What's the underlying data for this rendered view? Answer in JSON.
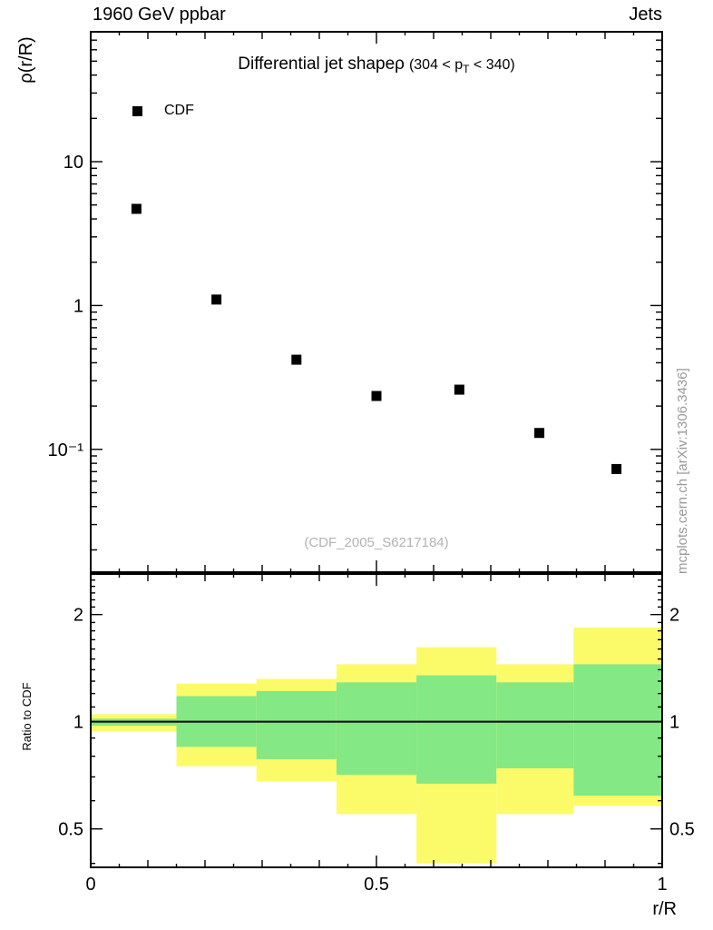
{
  "header": {
    "left": "1960 GeV ppbar",
    "right": "Jets"
  },
  "credit": "mcplots.cern.ch [arXiv:1306.3436]",
  "top_panel": {
    "y_axis_label": "ρ(r/R)",
    "title": {
      "main": "Differential jet shape",
      "symbol": "ρ",
      "range_pre": "(304 < p",
      "range_sub": "T",
      "range_post": " < 340)"
    },
    "legend": [
      {
        "label": "CDF",
        "marker": "filled-black-square"
      }
    ],
    "watermark": "(CDF_2005_S6217184)"
  },
  "bottom_panel": {
    "y_axis_label": "Ratio to CDF"
  },
  "x_axis": {
    "label": "r/R"
  },
  "colors": {
    "yellow_band": "#fbfb6a",
    "green_band": "#84e884",
    "marker": "#000000",
    "axis": "#000000",
    "watermark": "#b3b3b3",
    "credit": "#999999"
  },
  "chart_data": [
    {
      "type": "scatter",
      "panel": "top",
      "title": "Differential jet shape ρ (304 < pT < 340)",
      "xlabel": "r/R",
      "ylabel": "ρ(r/R)",
      "yscale": "log",
      "xlim": [
        0,
        1
      ],
      "ylim": [
        0.014,
        80
      ],
      "x_ticks": [
        {
          "v": 0,
          "label": "0"
        },
        {
          "v": 0.5,
          "label": "0.5"
        },
        {
          "v": 1,
          "label": "1"
        }
      ],
      "y_ticks": [
        {
          "v": 10,
          "label": "10"
        },
        {
          "v": 1,
          "label": "1"
        },
        {
          "v": 0.1,
          "label": "10⁻¹"
        }
      ],
      "series": [
        {
          "name": "CDF",
          "marker": "filled-square",
          "color": "#000000",
          "x": [
            0.08,
            0.22,
            0.36,
            0.5,
            0.645,
            0.785,
            0.92
          ],
          "y": [
            4.7,
            1.1,
            0.42,
            0.235,
            0.26,
            0.13,
            0.073
          ]
        }
      ]
    },
    {
      "type": "ratio-bands",
      "panel": "bottom",
      "ylabel": "Ratio to CDF",
      "yscale": "log",
      "ylim": [
        0.39,
        2.6
      ],
      "reference_line": 1,
      "y_ticks": [
        {
          "v": 2,
          "label": "2"
        },
        {
          "v": 1,
          "label": "1"
        },
        {
          "v": 0.5,
          "label": "0.5"
        }
      ],
      "bin_edges": [
        0,
        0.15,
        0.29,
        0.43,
        0.57,
        0.71,
        0.845,
        1.0
      ],
      "bands": {
        "yellow": {
          "hi": [
            1.05,
            1.28,
            1.32,
            1.45,
            1.62,
            1.45,
            1.84
          ],
          "lo": [
            0.94,
            0.75,
            0.68,
            0.55,
            0.4,
            0.55,
            0.58
          ]
        },
        "green": {
          "hi": [
            1.02,
            1.18,
            1.22,
            1.29,
            1.35,
            1.29,
            1.45
          ],
          "lo": [
            0.975,
            0.85,
            0.785,
            0.71,
            0.67,
            0.74,
            0.62
          ]
        }
      }
    }
  ]
}
